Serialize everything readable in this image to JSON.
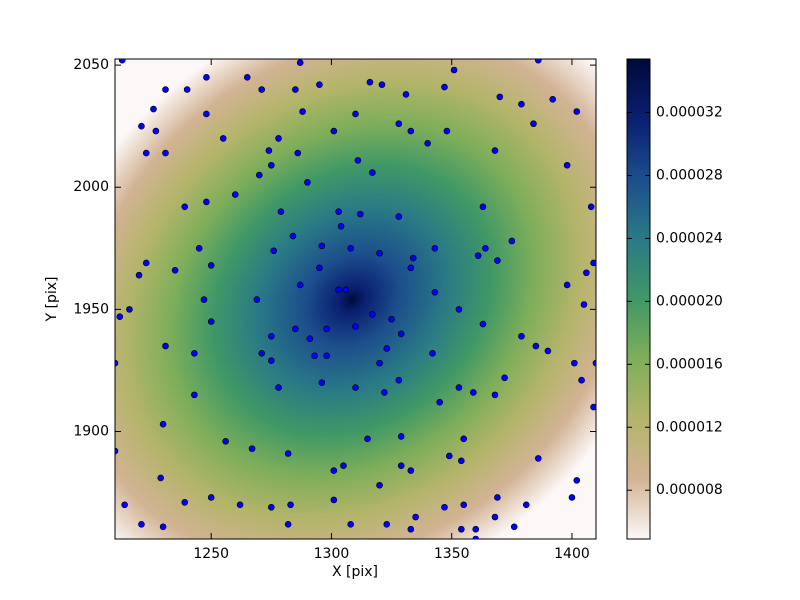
{
  "chart_data": {
    "type": "scatter",
    "xlabel": "X [pix]",
    "ylabel": "Y [pix]",
    "xlim": [
      1210,
      1410
    ],
    "ylim": [
      1856,
      2052.5
    ],
    "xticks": [
      1250,
      1300,
      1350,
      1400
    ],
    "yticks": [
      1900,
      1950,
      2000,
      2050
    ],
    "point_color": "#0000ff",
    "colormap": [
      "#fdf8f8",
      "#d2b394",
      "#b4b46a",
      "#7fae5a",
      "#3f9866",
      "#2a7a86",
      "#1c4e8c",
      "#0a1f70",
      "#000a3a"
    ],
    "clim": [
      4.9e-06,
      3.54e-05
    ],
    "cticks": [
      {
        "value": 8e-06,
        "label": "0.000008"
      },
      {
        "value": 1.2e-05,
        "label": "0.000012"
      },
      {
        "value": 1.6e-05,
        "label": "0.000016"
      },
      {
        "value": 2e-05,
        "label": "0.000020"
      },
      {
        "value": 2.4e-05,
        "label": "0.000024"
      },
      {
        "value": 2.8e-05,
        "label": "0.000028"
      },
      {
        "value": 3.2e-05,
        "label": "0.000032"
      }
    ],
    "x": [
      1213,
      1287,
      1386,
      1351,
      1248,
      1265,
      1240,
      1231,
      1271,
      1285,
      1295,
      1316,
      1321,
      1331,
      1347,
      1370,
      1379,
      1392,
      1226,
      1248,
      1288,
      1310,
      1221,
      1227,
      1384,
      1402,
      1255,
      1278,
      1301,
      1328,
      1333,
      1348,
      1340,
      1274,
      1286,
      1223,
      1231,
      1368,
      1311,
      1275,
      1317,
      1270,
      1398,
      1290,
      1239,
      1248,
      1260,
      1279,
      1303,
      1312,
      1328,
      1363,
      1408,
      1304,
      1284,
      1296,
      1308,
      1320,
      1334,
      1343,
      1245,
      1364,
      1223,
      1361,
      1369,
      1250,
      1276,
      1295,
      1333,
      1375,
      1235,
      1220,
      1409,
      1406,
      1398,
      1216,
      1212,
      1247,
      1250,
      1269,
      1287,
      1303,
      1306,
      1310,
      1317,
      1325,
      1343,
      1353,
      1363,
      1379,
      1385,
      1390,
      1405,
      1401,
      1285,
      1275,
      1291,
      1298,
      1323,
      1329,
      1342,
      1231,
      1243,
      1271,
      1275,
      1293,
      1298,
      1320,
      1353,
      1359,
      1368,
      1372,
      1404,
      1410,
      1210,
      1278,
      1296,
      1310,
      1322,
      1328,
      1345,
      1243,
      1409,
      1230,
      1256,
      1267,
      1282,
      1315,
      1329,
      1329,
      1333,
      1349,
      1354,
      1355,
      1386,
      1402,
      1400,
      1210,
      1229,
      1305,
      1301,
      1320,
      1239,
      1250,
      1262,
      1283,
      1214,
      1275,
      1301,
      1369,
      1335,
      1347,
      1355,
      1381,
      1221,
      1230,
      1282,
      1308,
      1323,
      1333,
      1354,
      1360,
      1368,
      1376,
      1360
    ],
    "y": [
      2052,
      2051,
      2052,
      2048,
      2045,
      2045,
      2040,
      2040,
      2040,
      2040,
      2042,
      2043,
      2042,
      2038,
      2041,
      2037,
      2034,
      2036,
      2032,
      2030,
      2031,
      2030,
      2025,
      2023,
      2026,
      2031,
      2020,
      2020,
      2023,
      2026,
      2023,
      2023,
      2018,
      2015,
      2014,
      2014,
      2014,
      2015,
      2011,
      2009,
      2006,
      2005,
      2009,
      2002,
      1992,
      1994,
      1997,
      1990,
      1990,
      1989,
      1988,
      1992,
      1992,
      1984,
      1980,
      1976,
      1975,
      1973,
      1971,
      1975,
      1975,
      1975,
      1969,
      1972,
      1970,
      1968,
      1974,
      1967,
      1967,
      1978,
      1966,
      1964,
      1969,
      1965,
      1960,
      1950,
      1947,
      1954,
      1945,
      1954,
      1960,
      1958,
      1958,
      1943,
      1948,
      1946,
      1957,
      1950,
      1944,
      1939,
      1935,
      1933,
      1952,
      1928,
      1942,
      1939,
      1938,
      1942,
      1934,
      1940,
      1932,
      1935,
      1932,
      1932,
      1929,
      1931,
      1931,
      1928,
      1918,
      1916,
      1915,
      1922,
      1921,
      1928,
      1928,
      1918,
      1920,
      1918,
      1916,
      1921,
      1912,
      1915,
      1910,
      1903,
      1896,
      1893,
      1891,
      1897,
      1898,
      1886,
      1884,
      1890,
      1888,
      1897,
      1889,
      1880,
      1873,
      1892,
      1881,
      1886,
      1884,
      1878,
      1871,
      1873,
      1870,
      1870,
      1870,
      1869,
      1872,
      1873,
      1865,
      1869,
      1870,
      1870,
      1862,
      1861,
      1862,
      1862,
      1862,
      1860,
      1860,
      1860,
      1865,
      1861,
      1856
    ]
  }
}
